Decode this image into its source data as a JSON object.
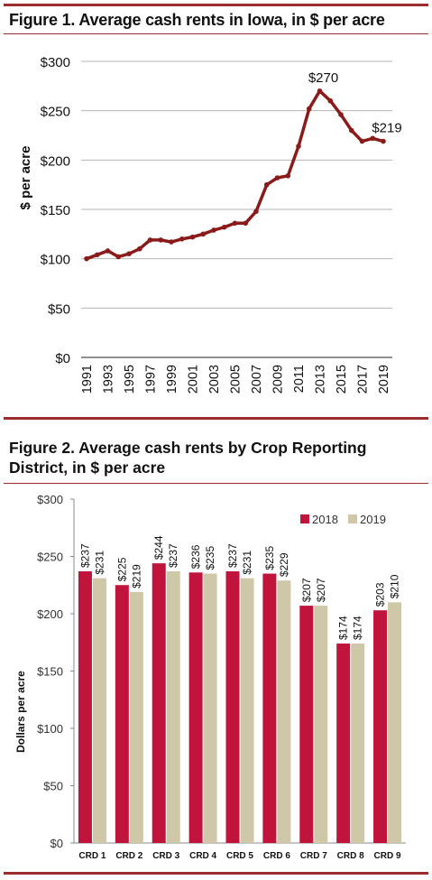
{
  "figure1": {
    "title": "Figure 1. Average cash rents in Iowa, in $ per acre"
  },
  "figure2": {
    "title": "Figure 2. Average cash rents by Crop Reporting District, in $ per acre"
  },
  "colors": {
    "rule": "#9b2d2d",
    "line": "#8b1a1a",
    "bar2018": "#c0143c",
    "bar2019": "#cfc8a8",
    "grid": "#b5b5b5"
  },
  "chart_data": [
    {
      "type": "line",
      "title": "Figure 1. Average cash rents in Iowa, in $ per acre",
      "xlabel": "",
      "ylabel": "$ per acre",
      "x": [
        1991,
        1992,
        1993,
        1994,
        1995,
        1996,
        1997,
        1998,
        1999,
        2000,
        2001,
        2002,
        2003,
        2004,
        2005,
        2006,
        2007,
        2008,
        2009,
        2010,
        2011,
        2012,
        2013,
        2014,
        2015,
        2016,
        2017,
        2018,
        2019
      ],
      "x_tick_labels": [
        "1991",
        "1993",
        "1995",
        "1997",
        "1999",
        "2001",
        "2003",
        "2005",
        "2007",
        "2009",
        "2011",
        "2013",
        "2015",
        "2017",
        "2019"
      ],
      "series": [
        {
          "values": [
            100,
            104,
            108,
            102,
            105,
            110,
            119,
            119,
            117,
            120,
            122,
            125,
            129,
            132,
            136,
            136,
            148,
            175,
            182,
            184,
            214,
            252,
            270,
            260,
            246,
            230,
            219,
            222,
            219
          ]
        }
      ],
      "ylim": [
        0,
        300
      ],
      "y_ticks": [
        0,
        50,
        100,
        150,
        200,
        250,
        300
      ],
      "y_tick_labels": [
        "$0",
        "$50",
        "$100",
        "$150",
        "$200",
        "$250",
        "$300"
      ],
      "annotations": [
        {
          "x": 2013,
          "text": "$270"
        },
        {
          "x": 2019,
          "text": "$219"
        }
      ],
      "grid": true,
      "legend": "none"
    },
    {
      "type": "bar",
      "title": "Figure 2. Average cash rents by Crop Reporting District, in $ per acre",
      "xlabel": "",
      "ylabel": "Dollars per acre",
      "categories": [
        "CRD 1",
        "CRD 2",
        "CRD 3",
        "CRD 4",
        "CRD 5",
        "CRD 6",
        "CRD 7",
        "CRD 8",
        "CRD 9"
      ],
      "series": [
        {
          "name": "2018",
          "values": [
            237,
            225,
            244,
            236,
            237,
            235,
            207,
            174,
            203
          ],
          "labels": [
            "$237",
            "$225",
            "$244",
            "$236",
            "$237",
            "$235",
            "$207",
            "$174",
            "$203"
          ]
        },
        {
          "name": "2019",
          "values": [
            231,
            219,
            237,
            235,
            231,
            229,
            207,
            174,
            210
          ],
          "labels": [
            "$231",
            "$219",
            "$237",
            "$235",
            "$231",
            "$229",
            "$207",
            "$174",
            "$210"
          ]
        }
      ],
      "ylim": [
        0,
        300
      ],
      "y_ticks": [
        0,
        50,
        100,
        150,
        200,
        250,
        300
      ],
      "y_tick_labels": [
        "$0",
        "$50",
        "$100",
        "$150",
        "$200",
        "$250",
        "$300"
      ],
      "grid": false,
      "legend": "top-right"
    }
  ]
}
